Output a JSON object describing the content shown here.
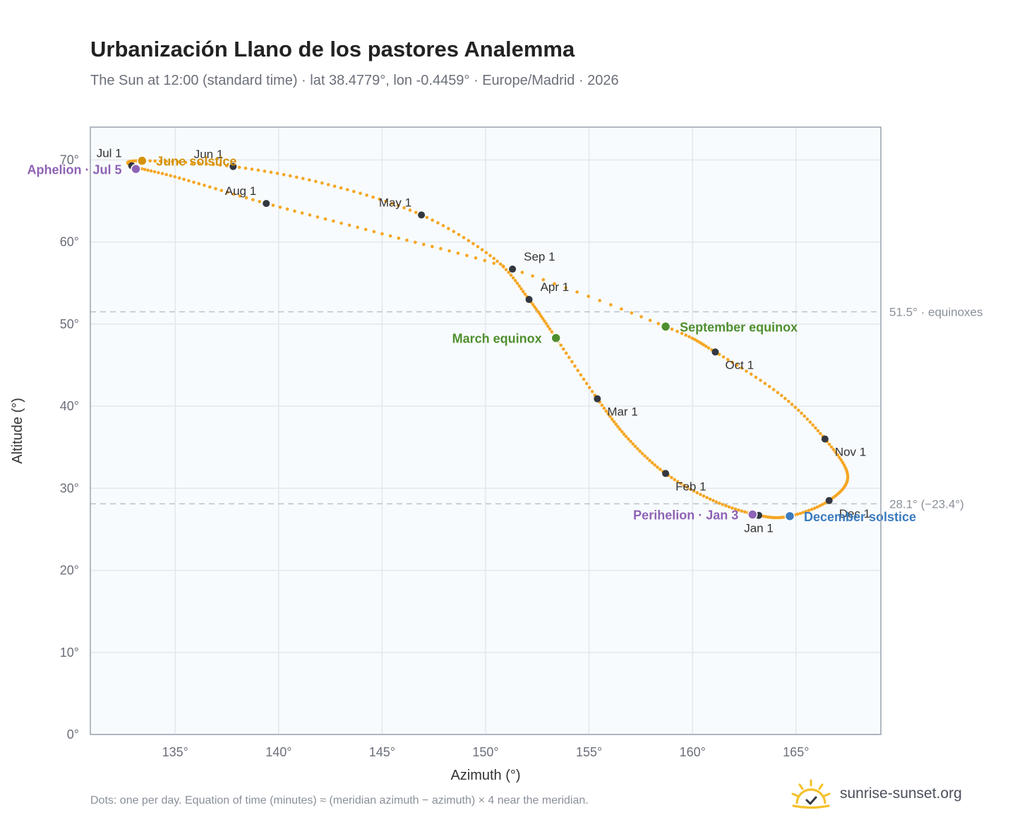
{
  "header": {
    "title": "Urbanización Llano de los pastores Analemma",
    "subtitle": "The Sun at 12:00 (standard time) · lat 38.4779°, lon -0.4459° · Europe/Madrid · 2026"
  },
  "footer": {
    "note": "Dots: one per day. Equation of time (minutes) ≈ (meridian azimuth − azimuth) × 4 near the meridian.",
    "brand": "sunrise-sunset.org"
  },
  "colors": {
    "curve": "#f5a623",
    "month_marker": "#333840",
    "solstice_june": "#d4920a",
    "solstice_december": "#3b7bbf",
    "equinox": "#4f8f2f",
    "apsis": "#8e63b5",
    "plot_bg": "#f8fbfd",
    "grid": "#e3e8ee",
    "refline": "#b8c2cc"
  },
  "chart_data": {
    "type": "scatter",
    "xlabel": "Azimuth (°)",
    "ylabel": "Altitude (°)",
    "xlim": [
      130.9,
      169.1
    ],
    "ylim": [
      0,
      74
    ],
    "x_ticks": [
      {
        "value": 135,
        "label": "135°"
      },
      {
        "value": 140,
        "label": "140°"
      },
      {
        "value": 145,
        "label": "145°"
      },
      {
        "value": 150,
        "label": "150°"
      },
      {
        "value": 155,
        "label": "155°"
      },
      {
        "value": 160,
        "label": "160°"
      },
      {
        "value": 165,
        "label": "165°"
      }
    ],
    "y_ticks": [
      {
        "value": 0,
        "label": "0°"
      },
      {
        "value": 10,
        "label": "10°"
      },
      {
        "value": 20,
        "label": "20°"
      },
      {
        "value": 30,
        "label": "30°"
      },
      {
        "value": 40,
        "label": "40°"
      },
      {
        "value": 50,
        "label": "50°"
      },
      {
        "value": 60,
        "label": "60°"
      },
      {
        "value": 70,
        "label": "70°"
      }
    ],
    "grid": true,
    "reference_lines": [
      {
        "altitude": 51.5,
        "label": "51.5° · equinoxes"
      },
      {
        "altitude": 28.1,
        "label": "28.1° (−23.4°)"
      }
    ],
    "path_points": [
      {
        "date": "Jan 1",
        "az": 163.2,
        "alt": 26.7
      },
      {
        "date": "Jan 15",
        "az": 161.0,
        "alt": 28.5
      },
      {
        "date": "Feb 1",
        "az": 158.7,
        "alt": 31.8
      },
      {
        "date": "Feb 15",
        "az": 156.9,
        "alt": 36.0
      },
      {
        "date": "Mar 1",
        "az": 155.4,
        "alt": 40.9
      },
      {
        "date": "Mar 20",
        "az": 153.4,
        "alt": 48.3
      },
      {
        "date": "Apr 1",
        "az": 152.1,
        "alt": 53.0
      },
      {
        "date": "Apr 15",
        "az": 150.4,
        "alt": 58.0
      },
      {
        "date": "May 1",
        "az": 146.9,
        "alt": 63.3
      },
      {
        "date": "May 15",
        "az": 142.4,
        "alt": 67.0
      },
      {
        "date": "Jun 1",
        "az": 137.8,
        "alt": 69.2
      },
      {
        "date": "Jun 21",
        "az": 133.4,
        "alt": 69.9
      },
      {
        "date": "Jul 1",
        "az": 132.9,
        "alt": 69.3
      },
      {
        "date": "Jul 15",
        "az": 135.2,
        "alt": 67.8
      },
      {
        "date": "Aug 1",
        "az": 139.4,
        "alt": 64.7
      },
      {
        "date": "Aug 15",
        "az": 145.0,
        "alt": 61.0
      },
      {
        "date": "Sep 1",
        "az": 151.3,
        "alt": 56.7
      },
      {
        "date": "Sep 23",
        "az": 158.7,
        "alt": 49.7
      },
      {
        "date": "Oct 1",
        "az": 161.1,
        "alt": 46.6
      },
      {
        "date": "Oct 15",
        "az": 164.3,
        "alt": 41.3
      },
      {
        "date": "Nov 1",
        "az": 166.4,
        "alt": 36.0
      },
      {
        "date": "Nov 15",
        "az": 167.5,
        "alt": 31.5
      },
      {
        "date": "Dec 1",
        "az": 166.6,
        "alt": 28.5
      },
      {
        "date": "Dec 21",
        "az": 164.7,
        "alt": 26.6
      }
    ],
    "month_markers": [
      {
        "label": "Jan 1",
        "az": 163.2,
        "alt": 26.7,
        "anchor": "below"
      },
      {
        "label": "Feb 1",
        "az": 158.7,
        "alt": 31.8,
        "anchor": "below-right"
      },
      {
        "label": "Mar 1",
        "az": 155.4,
        "alt": 40.9,
        "anchor": "below-right"
      },
      {
        "label": "Apr 1",
        "az": 152.1,
        "alt": 53.0,
        "anchor": "above-right"
      },
      {
        "label": "May 1",
        "az": 146.9,
        "alt": 63.3,
        "anchor": "above-left"
      },
      {
        "label": "Jun 1",
        "az": 137.8,
        "alt": 69.2,
        "anchor": "above-left"
      },
      {
        "label": "Jul 1",
        "az": 132.9,
        "alt": 69.3,
        "anchor": "above-left"
      },
      {
        "label": "Aug 1",
        "az": 139.4,
        "alt": 64.7,
        "anchor": "above-left"
      },
      {
        "label": "Sep 1",
        "az": 151.3,
        "alt": 56.7,
        "anchor": "above-right"
      },
      {
        "label": "Oct 1",
        "az": 161.1,
        "alt": 46.6,
        "anchor": "below-right"
      },
      {
        "label": "Nov 1",
        "az": 166.4,
        "alt": 36.0,
        "anchor": "below-right"
      },
      {
        "label": "Dec 1",
        "az": 166.6,
        "alt": 28.5,
        "anchor": "below-right"
      }
    ],
    "events": [
      {
        "label": "June solstice",
        "az": 133.4,
        "alt": 69.9,
        "color_key": "solstice_june",
        "side": "right"
      },
      {
        "label": "Aphelion · Jul 5",
        "az": 133.1,
        "alt": 68.9,
        "color_key": "apsis",
        "side": "left"
      },
      {
        "label": "March equinox",
        "az": 153.4,
        "alt": 48.3,
        "color_key": "equinox",
        "side": "left"
      },
      {
        "label": "September equinox",
        "az": 158.7,
        "alt": 49.7,
        "color_key": "equinox",
        "side": "right"
      },
      {
        "label": "Perihelion · Jan 3",
        "az": 162.9,
        "alt": 26.8,
        "color_key": "apsis",
        "side": "left"
      },
      {
        "label": "December solstice",
        "az": 164.7,
        "alt": 26.6,
        "color_key": "solstice_december",
        "side": "right"
      }
    ]
  }
}
